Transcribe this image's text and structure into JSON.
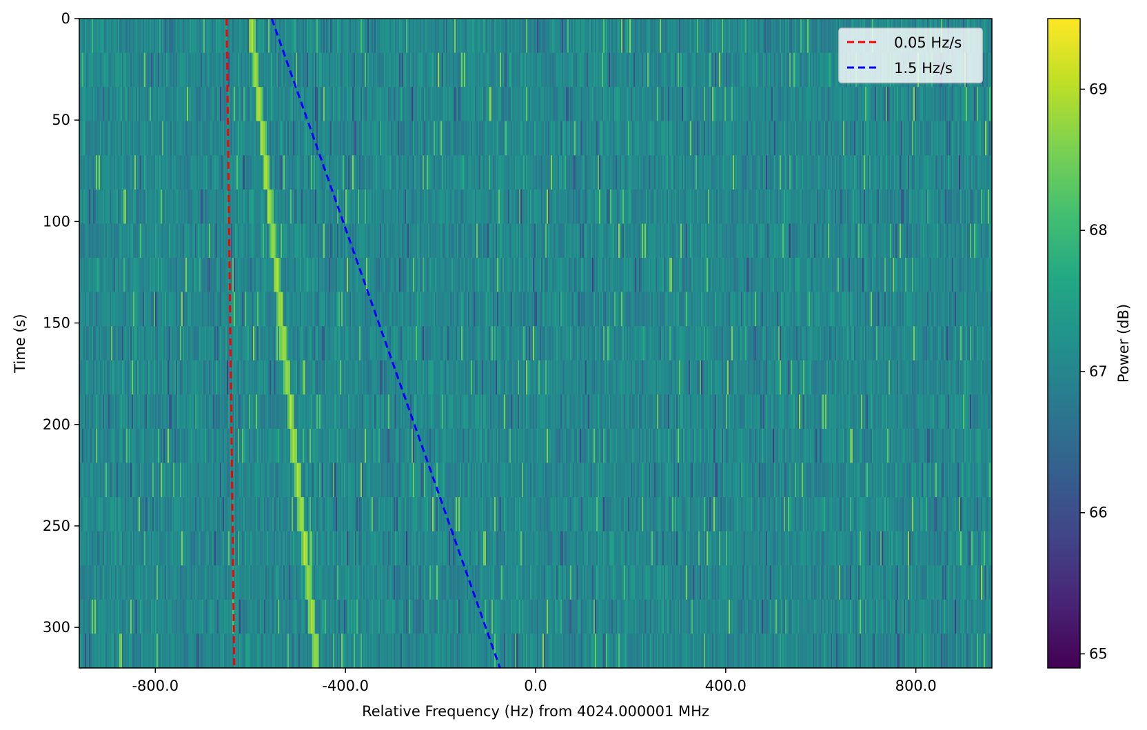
{
  "chart_data": {
    "type": "heatmap",
    "xlabel": "Relative Frequency (Hz) from 4024.000001 MHz",
    "ylabel": "Time (s)",
    "xlim": [
      -960,
      960
    ],
    "ylim": [
      320,
      0
    ],
    "x_ticks": [
      -800,
      -400,
      0,
      400,
      800
    ],
    "x_tick_labels": [
      "-800.0",
      "-400.0",
      "0.0",
      "400.0",
      "800.0"
    ],
    "y_ticks": [
      0,
      50,
      100,
      150,
      200,
      250,
      300
    ],
    "y_tick_labels": [
      "0",
      "50",
      "100",
      "150",
      "200",
      "250",
      "300"
    ],
    "time_rows": 19,
    "colormap": "viridis",
    "colorbar": {
      "label": "Power (dB)",
      "min": 64.9,
      "max": 69.5,
      "ticks": [
        65,
        66,
        67,
        68,
        69
      ],
      "tick_labels": [
        "65",
        "66",
        "67",
        "68",
        "69"
      ]
    },
    "signal_trace": {
      "description_values": "bright narrowband signal drifting",
      "x_start": -600,
      "y_start": 0,
      "x_end": -460,
      "y_end": 320,
      "peak_power_db": 69.2
    },
    "series": [
      {
        "name": "0.05 Hz/s",
        "color": "#ff0000",
        "style": "dashed",
        "points": [
          [
            -650,
            0
          ],
          [
            -634,
            320
          ]
        ]
      },
      {
        "name": "1.5 Hz/s",
        "color": "#0000ff",
        "style": "dashed",
        "points": [
          [
            -555,
            0
          ],
          [
            -75,
            320
          ]
        ]
      }
    ],
    "legend_position": "top-right",
    "grid": false
  }
}
